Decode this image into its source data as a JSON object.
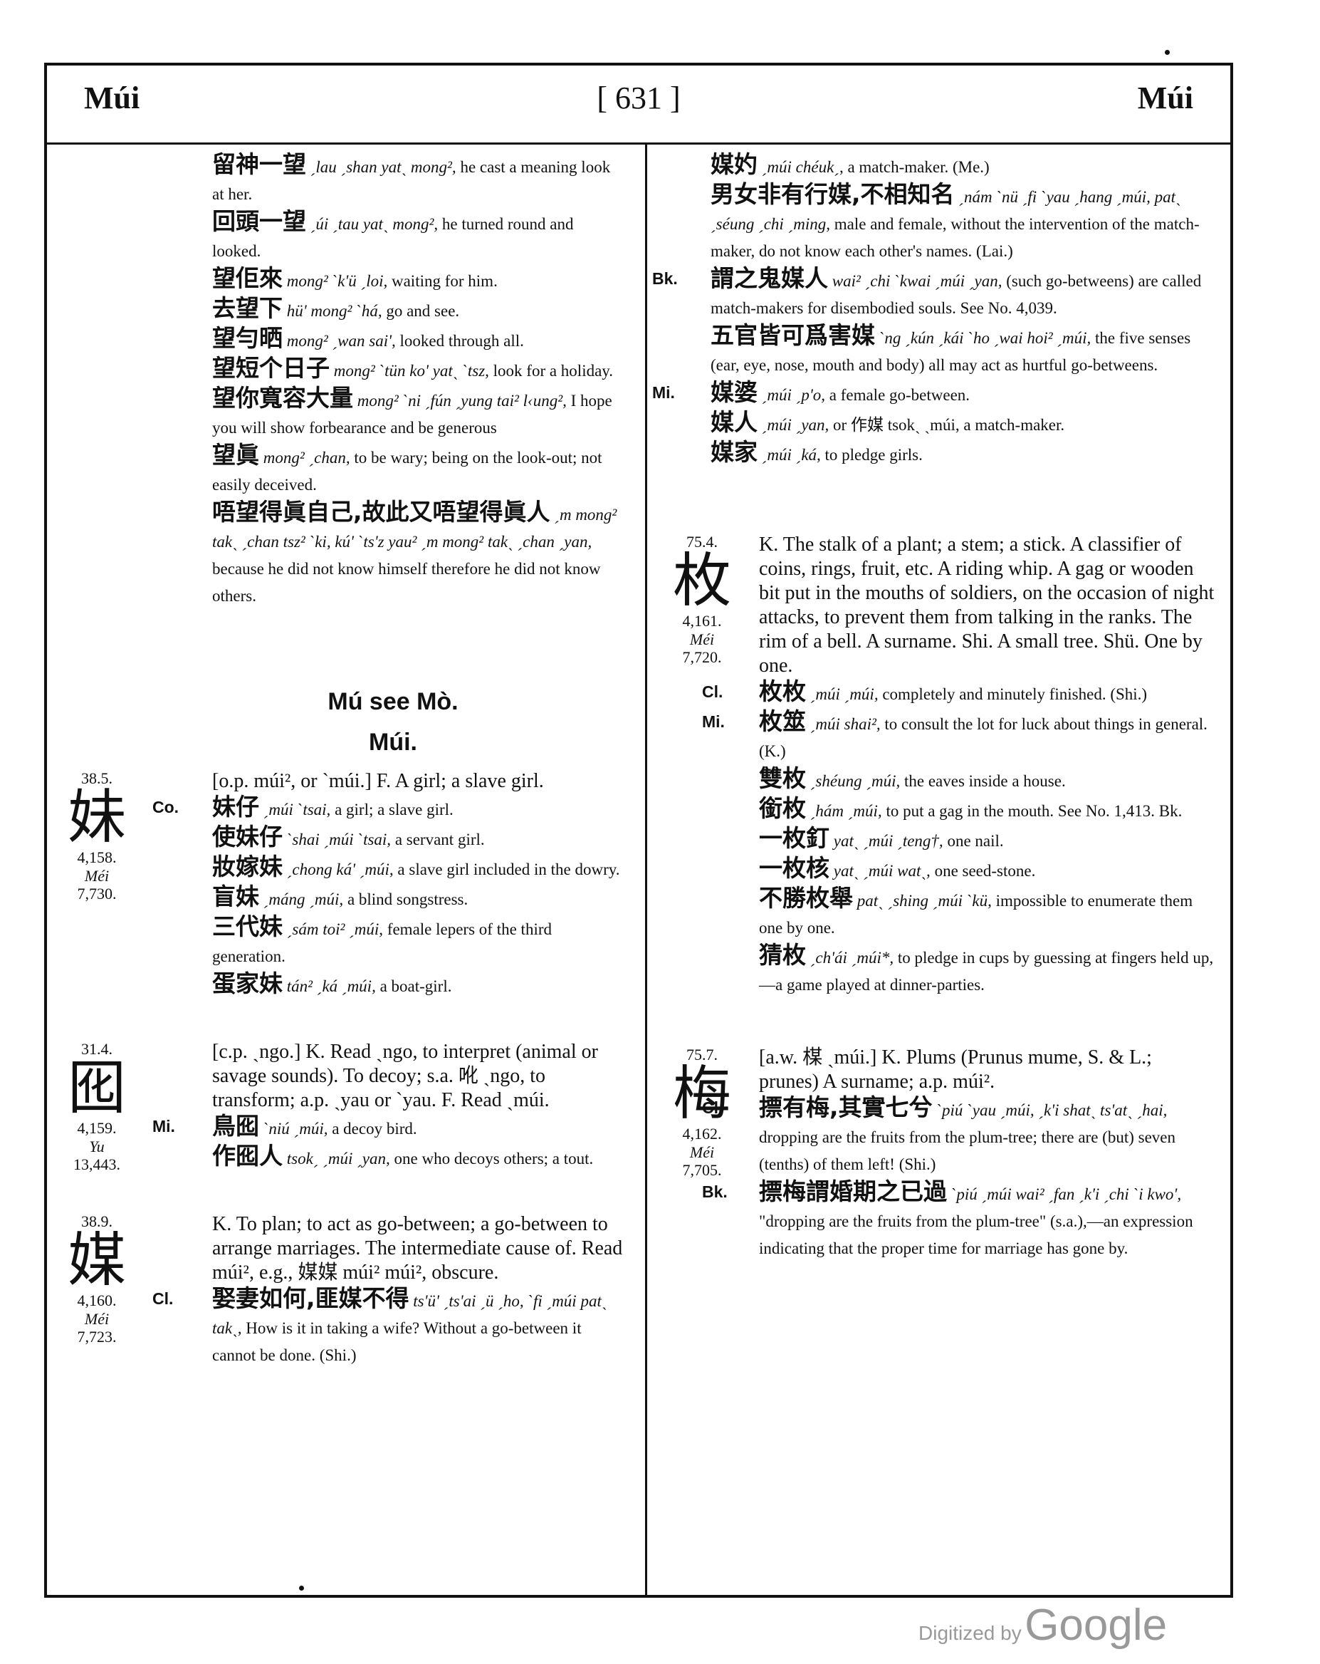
{
  "header": {
    "left_word": "Múi",
    "page_number": "[ 631 ]",
    "right_word": "Múi"
  },
  "left_top": [
    {
      "cj": "留神一望",
      "ro": "ˏlau ˏshan yatˎ mong²,",
      "en": "he cast a meaning look at her."
    },
    {
      "cj": "回頭一望",
      "ro": "ˏúi ˏtau yatˎ mong²,",
      "en": "he turned round and looked."
    },
    {
      "cj": "望佢來",
      "ro": "mong² ˋk'ü ˏloi,",
      "en": "waiting for him."
    },
    {
      "cj": "去望下",
      "ro": "hü' mong² ˋhá,",
      "en": "go and see."
    },
    {
      "cj": "望勻晒",
      "ro": "mong² ˏwan sai',",
      "en": "looked through all."
    },
    {
      "cj": "望短个日子",
      "ro": "mong² ˋtün ko' yatˎ ˋtsz,",
      "en": "look for a holiday."
    },
    {
      "cj": "望你寬容大量",
      "ro": "mong² ˋni ˏfún ˏyung tai² l‹ung²,",
      "en": "I hope you will show forbearance and be generous"
    },
    {
      "cj": "望眞",
      "ro": "mong² ˏchan,",
      "en": "to be wary; being on the look-out; not easily deceived."
    },
    {
      "cj": "唔望得眞自己,故此又唔望得眞人",
      "ro": "ˏm mong² takˎ ˏchan tsz² ˋki, kú' ˋts'z yau² ˏm mong² takˎ ˏchan ˏyan,",
      "en": "because he did not know himself therefore he did not know others."
    }
  ],
  "heading_mu": "Mú see Mò.",
  "heading_mui": "Múi.",
  "mui_sister": {
    "margin": {
      "radical": "38.5.",
      "char": "妹",
      "number": "4,158.",
      "mandarin": "Méi",
      "ref": "7,730."
    },
    "def": "[o.p. múi², or ˋmúi.] F. A girl; a slave girl.",
    "sections": [
      {
        "tag": "Co.",
        "lines": [
          {
            "cj": "妹仔",
            "ro": "ˏmúi ˋtsai,",
            "en": "a girl; a slave girl."
          },
          {
            "cj": "使妹仔",
            "ro": "ˋshai ˏmúi ˋtsai,",
            "en": "a servant girl."
          },
          {
            "cj": "妝嫁妹",
            "ro": "ˏchong ká' ˏmúi,",
            "en": "a slave girl included in the dowry."
          },
          {
            "cj": "盲妹",
            "ro": "ˏmáng ˏmúi,",
            "en": "a blind songstress."
          },
          {
            "cj": "三代妹",
            "ro": "ˏsám toi² ˏmúi,",
            "en": "female lepers of the third generation."
          },
          {
            "cj": "蛋家妹",
            "ro": "tán² ˏká ˏmúi,",
            "en": "a boat-girl."
          }
        ]
      }
    ]
  },
  "mui_decoy": {
    "margin": {
      "radical": "31.4.",
      "char": "囮",
      "number": "4,159.",
      "mandarin": "Yu",
      "ref": "13,443."
    },
    "def": "[c.p. ˏngo.] K. Read ˏngo, to interpret (animal or savage sounds). To decoy; s.a. 吪 ˏngo, to transform; a.p. ˏyau or ˋyau. F. Read ˏmúi.",
    "sections": [
      {
        "tag": "Mi.",
        "lines": [
          {
            "cj": "鳥囮",
            "ro": "ˋniú ˏmúi,",
            "en": "a decoy bird."
          },
          {
            "cj": "作囮人",
            "ro": "tsokˏ ˏmúi ˏyan,",
            "en": "one who decoys others; a tout."
          }
        ]
      }
    ]
  },
  "mui_gobetween": {
    "margin": {
      "radical": "38.9.",
      "char": "媒",
      "number": "4,160.",
      "mandarin": "Méi",
      "ref": "7,723."
    },
    "def": "K. To plan; to act as go-between; a go-between to arrange marriages. The intermediate cause of. Read múi², e.g., 媒媒 múi² múi², obscure.",
    "sections": [
      {
        "tag": "Cl.",
        "lines": [
          {
            "cj": "娶妻如何,匪媒不得",
            "ro": "ts'ü' ˏts'ai ˏü ˏho, ˋfi ˏmúi patˎ takˎ,",
            "en": "How is it in taking a wife? Without a go-between it cannot be done. (Shi.)"
          }
        ]
      }
    ]
  },
  "right_top": {
    "sections": [
      {
        "tag": "",
        "lines": [
          {
            "cj": "媒妁",
            "ro": "ˏmúi chéukˏ,",
            "en": "a match-maker. (Me.)"
          },
          {
            "cj": "男女非有行媒,不相知名",
            "ro": "ˏnám ˋnü ˏfi ˋyau ˏhang ˏmúi, patˎ ˏséung ˏchi ˏming,",
            "en": "male and female, without the intervention of the match-maker, do not know each other's names. (Lai.)"
          }
        ]
      },
      {
        "tag": "Bk.",
        "lines": [
          {
            "cj": "謂之鬼媒人",
            "ro": "wai² ˏchi ˋkwai ˏmúi ˏyan,",
            "en": "(such go-betweens) are called match-makers for disembodied souls. See No. 4,039."
          },
          {
            "cj": "五官皆可爲害媒",
            "ro": "ˋng ˏkún ˏkái ˋho ˏwai hoi² ˏmúi,",
            "en": "the five senses (ear, eye, nose, mouth and body) all may act as hurtful go-betweens."
          }
        ]
      },
      {
        "tag": "Mi.",
        "lines": [
          {
            "cj": "媒婆",
            "ro": "ˏmúi ˏp'o,",
            "en": "a female go-between."
          },
          {
            "cj": "媒人",
            "ro": "ˏmúi ˏyan,",
            "en": "or 作媒 tsokˏ ˏmúi, a match-maker."
          },
          {
            "cj": "媒家",
            "ro": "ˏmúi ˏká,",
            "en": "to pledge girls."
          }
        ]
      }
    ]
  },
  "mui_stalk": {
    "margin": {
      "radical": "75.4.",
      "char": "枚",
      "number": "4,161.",
      "mandarin": "Méi",
      "ref": "7,720."
    },
    "def": "K. The stalk of a plant; a stem; a stick. A classifier of coins, rings, fruit, etc. A riding whip. A gag or wooden bit put in the mouths of soldiers, on the occasion of night attacks, to prevent them from talking in the ranks. The rim of a bell. A surname. Shi. A small tree. Shü. One by one.",
    "sections": [
      {
        "tag": "Cl.",
        "lines": [
          {
            "cj": "枚枚",
            "ro": "ˏmúi ˏmúi,",
            "en": "completely and minutely finished. (Shi.)"
          }
        ]
      },
      {
        "tag": "Mi.",
        "lines": [
          {
            "cj": "枚筮",
            "ro": "ˏmúi shai²,",
            "en": "to consult the lot for luck about things in general. (K.)"
          },
          {
            "cj": "雙枚",
            "ro": "ˏshéung ˏmúi,",
            "en": "the eaves inside a house."
          },
          {
            "cj": "銜枚",
            "ro": "ˏhám ˏmúi,",
            "en": "to put a gag in the mouth. See No. 1,413. Bk."
          },
          {
            "cj": "一枚釘",
            "ro": "yatˎ ˏmúi ˏteng†,",
            "en": "one nail."
          },
          {
            "cj": "一枚核",
            "ro": "yatˎ ˏmúi watˎ,",
            "en": "one seed-stone."
          },
          {
            "cj": "不勝枚舉",
            "ro": "patˎ ˏshing ˏmúi ˋkü,",
            "en": "impossible to enumerate them one by one."
          },
          {
            "cj": "猜枚",
            "ro": "ˏch'ái ˏmúi*,",
            "en": "to pledge in cups by guessing at fingers held up,—a game played at dinner-parties."
          }
        ]
      }
    ]
  },
  "mui_plum": {
    "margin": {
      "radical": "75.7.",
      "char": "梅",
      "number": "4,162.",
      "mandarin": "Méi",
      "ref": "7,705."
    },
    "def": "[a.w. 楳 ˏmúi.] K. Plums (Prunus mume, S. & L.; prunes) A surname; a.p. múi².",
    "sections": [
      {
        "tag": "Cl.",
        "lines": [
          {
            "cj": "摽有梅,其實七兮",
            "ro": "ˋpiú ˋyau ˏmúi, ˏk'i shatˎ ts'atˎ ˏhai,",
            "en": "dropping are the fruits from the plum-tree; there are (but) seven (tenths) of them left! (Shi.)"
          }
        ]
      },
      {
        "tag": "Bk.",
        "lines": [
          {
            "cj": "摽梅謂婚期之已過",
            "ro": "ˋpiú ˏmúi wai² ˏfan ˏk'i ˏchi ˋi kwo',",
            "en": "\"dropping are the fruits from the plum-tree\" (s.a.),—an expression indicating that the proper time for marriage has gone by."
          }
        ]
      }
    ]
  },
  "watermark": {
    "small": "Digitized by",
    "brand": "Google"
  }
}
